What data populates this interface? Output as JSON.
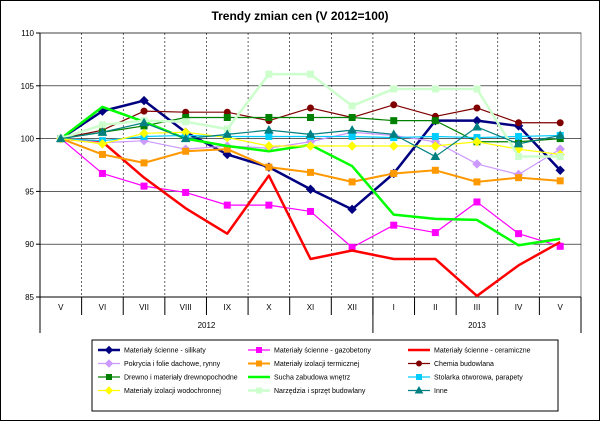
{
  "chart_data": {
    "type": "line",
    "title": "Trendy zmian cen (V 2012=100)",
    "xlabel": "",
    "ylabel": "",
    "ylim": [
      85,
      110
    ],
    "yticks": [
      85,
      90,
      95,
      100,
      105,
      110
    ],
    "categories": [
      "V",
      "VI",
      "VII",
      "VIII",
      "IX",
      "X",
      "XI",
      "XII",
      "I",
      "II",
      "III",
      "IV",
      "V"
    ],
    "year_groups": [
      {
        "label": "2012",
        "from": 0,
        "to": 7
      },
      {
        "label": "2013",
        "from": 8,
        "to": 12
      }
    ],
    "grid": true,
    "legend_position": "bottom",
    "series": [
      {
        "name": "Materiały ścienne - silikaty",
        "color": "#000080",
        "marker": "diamond",
        "width": 2.5,
        "values": [
          100,
          102.6,
          103.6,
          100.6,
          98.5,
          97.3,
          95.2,
          93.3,
          96.7,
          101.7,
          101.7,
          101.2,
          97.0
        ]
      },
      {
        "name": "Materiały ścienne - gazobetony",
        "color": "#FF00FF",
        "marker": "square",
        "width": 1.2,
        "values": [
          100,
          96.7,
          95.5,
          94.9,
          93.7,
          93.7,
          93.1,
          89.7,
          91.8,
          91.1,
          94.0,
          91.0,
          89.8
        ]
      },
      {
        "name": "Materiały ścienne - ceramiczne",
        "color": "#FF0000",
        "marker": "none",
        "width": 2.5,
        "values": [
          100,
          99.7,
          96.3,
          93.4,
          91.0,
          96.5,
          88.6,
          89.4,
          88.6,
          88.6,
          85.1,
          88.0,
          90.2
        ]
      },
      {
        "name": "Pokrycia i folie dachowe, rynny",
        "color": "#CC99FF",
        "marker": "diamond",
        "width": 1.2,
        "values": [
          100,
          99.6,
          99.8,
          99.0,
          99.3,
          99.1,
          99.7,
          100.6,
          100.3,
          99.7,
          97.6,
          96.6,
          99.0
        ]
      },
      {
        "name": "Materiały izolacji termicznej",
        "color": "#FF9900",
        "marker": "square",
        "width": 2,
        "values": [
          100,
          98.5,
          97.7,
          98.8,
          99.0,
          97.3,
          96.8,
          95.9,
          96.7,
          97.0,
          95.9,
          96.3,
          96.0
        ]
      },
      {
        "name": "Chemia budowlana",
        "color": "#800000",
        "marker": "circle",
        "width": 1.2,
        "values": [
          100,
          100.8,
          102.6,
          102.5,
          102.5,
          101.7,
          102.9,
          102.0,
          103.2,
          102.1,
          102.9,
          101.5,
          101.5
        ]
      },
      {
        "name": "Drewno i materiały drewnopochodne",
        "color": "#008000",
        "marker": "square",
        "width": 1.2,
        "values": [
          100,
          100.6,
          101.2,
          102.0,
          102.0,
          102.0,
          102.0,
          102.0,
          101.7,
          101.7,
          99.7,
          99.7,
          100.0
        ]
      },
      {
        "name": "Sucha zabudowa wnętrz",
        "color": "#00FF00",
        "marker": "none",
        "width": 2.5,
        "values": [
          100,
          103.0,
          101.6,
          100.0,
          99.3,
          98.8,
          99.4,
          97.4,
          92.8,
          92.4,
          92.3,
          89.9,
          90.5
        ]
      },
      {
        "name": "Stolarka otworowa, parapety",
        "color": "#00CCFF",
        "marker": "square",
        "width": 1.2,
        "values": [
          100,
          99.8,
          100.2,
          100.3,
          100.2,
          100.2,
          100.2,
          100.2,
          100.1,
          100.2,
          100.1,
          100.2,
          100.3
        ]
      },
      {
        "name": "Materiały izolacji wodochronnej",
        "color": "#FFFF00",
        "marker": "diamond",
        "width": 1.2,
        "values": [
          100,
          99.5,
          100.5,
          100.6,
          100.1,
          99.3,
          99.3,
          99.3,
          99.3,
          99.3,
          99.7,
          99.0,
          98.5
        ]
      },
      {
        "name": "Narzędzia i sprzęt budowlany",
        "color": "#CCFFCC",
        "marker": "square",
        "width": 2.5,
        "values": [
          100,
          101.3,
          101.7,
          101.6,
          100.9,
          106.1,
          106.1,
          103.1,
          104.7,
          104.7,
          104.7,
          98.3,
          98.3
        ]
      },
      {
        "name": "Inne",
        "color": "#008080",
        "marker": "triangle",
        "width": 1.2,
        "values": [
          100,
          100.6,
          101.5,
          100.0,
          100.4,
          100.8,
          100.4,
          100.8,
          100.4,
          98.3,
          101.1,
          99.5,
          100.3
        ]
      }
    ]
  }
}
